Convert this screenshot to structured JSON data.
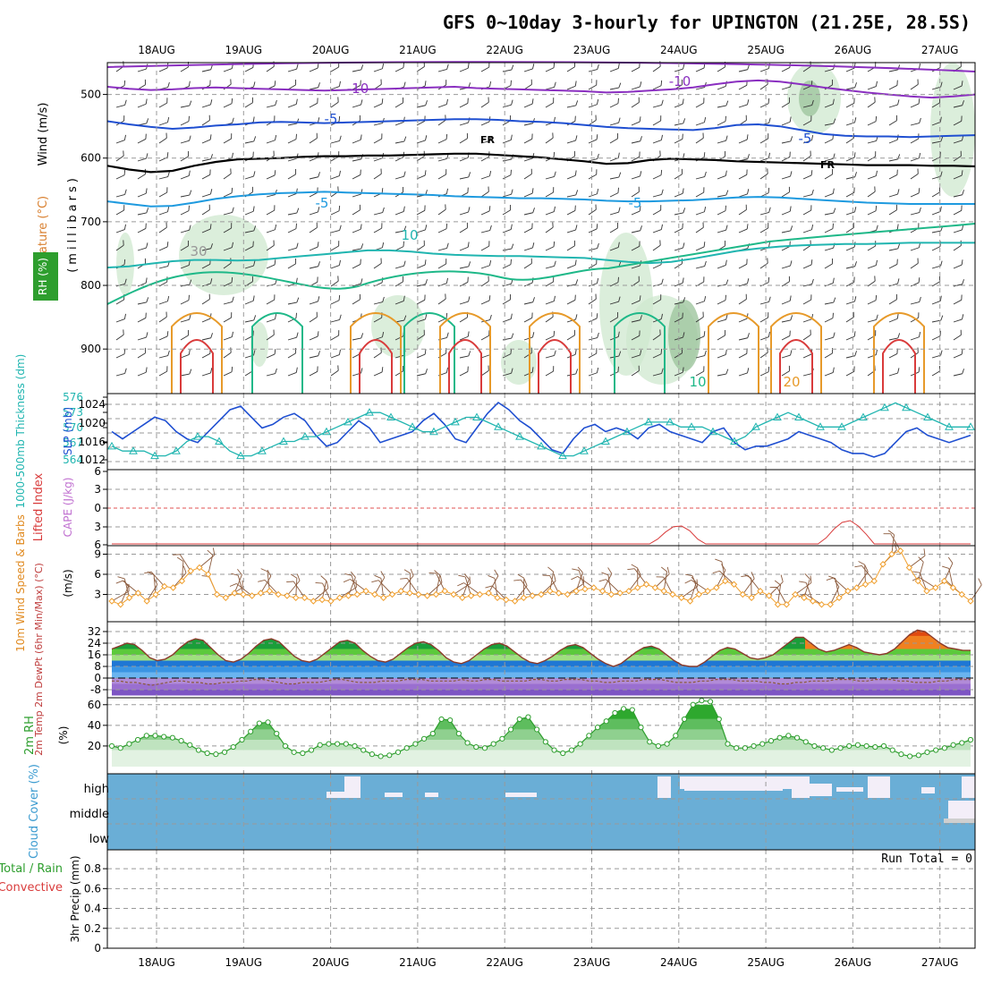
{
  "page": {
    "title": "GFS 0~10day 3-hourly for UPINGTON (21.25E, 28.5S)"
  },
  "dates": [
    "18AUG",
    "19AUG",
    "20AUG",
    "21AUG",
    "22AUG",
    "23AUG",
    "24AUG",
    "25AUG",
    "26AUG",
    "27AUG"
  ],
  "colors": {
    "purple": "#8a2fc0",
    "blue": "#1f4fd1",
    "lightblue": "#1e9adf",
    "cyan": "#20b5b0",
    "teal": "#1eb888",
    "orange": "#e79a2a",
    "red": "#d93b3b",
    "green": "#2e9e2e",
    "rhshade": "#cfe8cf",
    "cloud": "#6aaed6",
    "cloudclear": "#f3eef8",
    "windbrown": "#8b5a3c",
    "windorange": "#f0a030"
  },
  "panels": {
    "upper": {
      "ylabel_wind": "Wind (m/s)",
      "ylabel_temp": "Temperature (°C)",
      "ylabel_rh": "RH (%)",
      "ylabel_p": "(millibars)",
      "contour_labels": [
        "-10",
        "-10",
        "-5",
        "-5",
        "FR",
        "FR",
        "-5",
        "-5",
        "10",
        "10",
        "20",
        "10",
        "10",
        "30"
      ]
    },
    "slp": {
      "ylabel_thick": "1000-500mb Thickness (dm)",
      "ylabel_slp": "SLP (mb)"
    },
    "cape": {
      "ylabel_li": "Lifted Index",
      "ylabel_cape": "CAPE (J/kg)"
    },
    "wind10": {
      "ylabel": "10m Wind Speed & Barbs",
      "units": "(m/s)"
    },
    "temp2m": {
      "ylabel": "2m Temp 2m DewPt (6hr Min/Max) (°C)"
    },
    "rh2m": {
      "ylabel": "2m RH",
      "units": "(%)"
    },
    "cloud": {
      "ylabel": "Cloud Cover (%)",
      "levels": [
        "high",
        "middle",
        "low"
      ]
    },
    "precip": {
      "ylabel_a": "Total / Rain",
      "ylabel_b": "Convective",
      "ylabel_c": "3hr Precip (mm)",
      "run_total": "Run Total = 0"
    }
  },
  "chart_data": [
    {
      "type": "line",
      "title": "GFS 0~10day 3-hourly for UPINGTON (21.25E, 28.5S)",
      "panel": "upper-air cross section",
      "ylabel": "(millibars)",
      "ylim": [
        450,
        970
      ],
      "yticks": [
        500,
        600,
        700,
        800,
        900
      ],
      "series": [
        {
          "name": "-10",
          "values": [
            488,
            491,
            493,
            492,
            490,
            489,
            490,
            491,
            492,
            493,
            494,
            493,
            492,
            491,
            490,
            489,
            488,
            490,
            491,
            492,
            493,
            494,
            495,
            497,
            496,
            494,
            492,
            489,
            484,
            480,
            478,
            480,
            484,
            489,
            493,
            497,
            500,
            503,
            505,
            503,
            500
          ]
        },
        {
          "name": "-5",
          "values": [
            542,
            547,
            551,
            554,
            552,
            549,
            547,
            544,
            543,
            544,
            545,
            544,
            543,
            542,
            541,
            540,
            539,
            539,
            540,
            542,
            543,
            545,
            548,
            551,
            553,
            554,
            555,
            556,
            553,
            548,
            547,
            550,
            556,
            562,
            565,
            566,
            566,
            567,
            566,
            565,
            564
          ]
        },
        {
          "name": "FR",
          "values": [
            612,
            618,
            622,
            620,
            612,
            606,
            602,
            601,
            600,
            598,
            597,
            597,
            596,
            596,
            595,
            594,
            593,
            593,
            595,
            597,
            599,
            602,
            605,
            609,
            608,
            603,
            601,
            602,
            603,
            605,
            606,
            607,
            608,
            609,
            610,
            611,
            611,
            611,
            612,
            612,
            613
          ]
        },
        {
          "name": "-5",
          "values": [
            668,
            672,
            676,
            675,
            670,
            664,
            660,
            657,
            655,
            654,
            653,
            654,
            655,
            656,
            657,
            658,
            660,
            661,
            662,
            663,
            663,
            664,
            665,
            667,
            668,
            668,
            667,
            666,
            664,
            662,
            661,
            662,
            664,
            666,
            668,
            670,
            671,
            672,
            672,
            672,
            672
          ]
        },
        {
          "name": "10",
          "values": [
            772,
            770,
            766,
            762,
            760,
            760,
            761,
            760,
            757,
            754,
            751,
            748,
            745,
            745,
            747,
            750,
            752,
            753,
            754,
            754,
            755,
            756,
            757,
            760,
            763,
            765,
            763,
            758,
            752,
            746,
            742,
            739,
            737,
            736,
            735,
            735,
            734,
            733,
            733,
            733,
            733
          ]
        }
      ]
    },
    {
      "type": "line",
      "panel": "1000-500mb thickness and SLP",
      "ylabel_left": "1000-500mb Thickness (dm)",
      "ylabel_right": "SLP (mb)",
      "series": [
        {
          "name": "SLP (mb)",
          "values": [
            1018,
            1016,
            1018,
            1020,
            1022,
            1021,
            1018,
            1016,
            1015,
            1018,
            1021,
            1024,
            1025,
            1022,
            1019,
            1020,
            1022,
            1023,
            1021,
            1017,
            1014,
            1015,
            1018,
            1021,
            1019,
            1015,
            1016,
            1017,
            1018,
            1021,
            1023,
            1020,
            1016,
            1015,
            1019,
            1023,
            1026,
            1024,
            1021,
            1019,
            1016,
            1013,
            1012,
            1016,
            1019,
            1020,
            1018,
            1019,
            1018,
            1016,
            1019,
            1020,
            1018,
            1017,
            1016,
            1015,
            1018,
            1019,
            1015,
            1013,
            1014,
            1014,
            1015,
            1016,
            1018,
            1017,
            1016,
            1015,
            1013,
            1012,
            1012,
            1011,
            1012,
            1015,
            1018,
            1019,
            1017,
            1016,
            1015,
            1016,
            1017
          ]
        },
        {
          "name": "1000-500mb Thickness (dm)",
          "values": [
            566,
            565,
            565,
            565,
            564,
            564,
            565,
            567,
            568,
            568,
            567,
            565,
            564,
            564,
            565,
            566,
            567,
            567,
            568,
            568,
            569,
            570,
            571,
            572,
            573,
            573,
            572,
            571,
            570,
            569,
            569,
            570,
            571,
            572,
            572,
            571,
            570,
            569,
            568,
            567,
            566,
            565,
            564,
            564,
            565,
            566,
            567,
            568,
            569,
            570,
            571,
            571,
            571,
            570,
            570,
            570,
            569,
            568,
            567,
            568,
            570,
            571,
            572,
            573,
            572,
            571,
            570,
            570,
            570,
            571,
            572,
            573,
            574,
            575,
            574,
            573,
            572,
            571,
            570,
            570,
            570
          ]
        }
      ]
    },
    {
      "type": "line",
      "panel": "CAPE and Lifted Index",
      "ylabel": "Lifted Index / CAPE (J/kg)",
      "yticks": [
        "6",
        "3",
        "0",
        "3",
        "6"
      ],
      "series": [
        {
          "name": "Lifted Index",
          "values": [
            6,
            6,
            6,
            6,
            6,
            6,
            6,
            6,
            6,
            6,
            6,
            6,
            6,
            6,
            6,
            6,
            6,
            6,
            6,
            6,
            6,
            6,
            6,
            6,
            6,
            6,
            6,
            6,
            6,
            6,
            6,
            6,
            6,
            6,
            6,
            6,
            6,
            6,
            6,
            6,
            6,
            6,
            6,
            6,
            6,
            6,
            6,
            6,
            6,
            6,
            6,
            6,
            6,
            6,
            6,
            6,
            6,
            6,
            6,
            6,
            6,
            6,
            6,
            6,
            6,
            6,
            6,
            6,
            5.2,
            4.0,
            3.1,
            3.0,
            3.8,
            5.2,
            6,
            6,
            6,
            6,
            6,
            6,
            6,
            6,
            6,
            6,
            6,
            6,
            6,
            6,
            6,
            5.0,
            3.5,
            2.4,
            2.1,
            3.0,
            4.4,
            6,
            6,
            6,
            6,
            6,
            6,
            6,
            6,
            6,
            6,
            6,
            6,
            6
          ]
        }
      ]
    },
    {
      "type": "line",
      "panel": "10m wind",
      "ylabel": "10m Wind Speed & Barbs (m/s)",
      "yticks": [
        3,
        6,
        9
      ],
      "series": [
        {
          "name": "10m Wind Speed",
          "values": [
            2.0,
            1.5,
            2.5,
            3.2,
            2.0,
            3.0,
            4.2,
            4.0,
            5.0,
            6.5,
            7.0,
            6.0,
            3.0,
            2.5,
            3.2,
            3.0,
            2.8,
            3.2,
            3.5,
            3.0,
            2.8,
            2.5,
            2.5,
            2.0,
            2.2,
            2.0,
            2.5,
            2.8,
            3.0,
            3.5,
            3.0,
            2.5,
            3.0,
            3.5,
            3.2,
            3.0,
            2.8,
            3.0,
            3.5,
            3.0,
            2.5,
            2.8,
            3.0,
            3.2,
            2.5,
            2.2,
            2.0,
            2.5,
            2.8,
            3.0,
            3.5,
            3.2,
            3.0,
            3.5,
            3.8,
            4.0,
            3.5,
            3.0,
            3.2,
            3.5,
            4.0,
            4.5,
            4.0,
            3.5,
            3.0,
            2.5,
            2.0,
            3.0,
            3.5,
            4.0,
            5.0,
            4.5,
            3.0,
            2.5,
            3.5,
            2.8,
            1.5,
            1.5,
            3.0,
            2.5,
            2.0,
            1.5,
            1.5,
            2.5,
            3.5,
            4.0,
            4.5,
            5.0,
            7.5,
            9.0,
            9.5,
            7.0,
            5.0,
            3.5,
            4.0,
            5.0,
            4.0,
            3.0,
            2.0
          ]
        }
      ]
    },
    {
      "type": "area",
      "panel": "2m temperature and dewpoint",
      "ylabel": "2m Temp 2m DewPt (6hr Min/Max) (°C)",
      "yticks": [
        -8,
        0,
        8,
        16,
        24,
        32
      ],
      "series": [
        {
          "name": "2m Temp",
          "values": [
            20,
            22,
            24,
            23,
            19,
            14,
            12,
            13,
            16,
            21,
            25,
            27,
            26,
            21,
            16,
            12,
            11,
            13,
            17,
            22,
            26,
            27,
            25,
            20,
            15,
            12,
            11,
            13,
            17,
            21,
            25,
            26,
            24,
            19,
            15,
            12,
            11,
            13,
            17,
            21,
            24,
            25,
            23,
            19,
            14,
            11,
            10,
            12,
            16,
            20,
            23,
            24,
            22,
            18,
            14,
            11,
            10,
            12,
            15,
            19,
            22,
            23,
            21,
            17,
            13,
            10,
            8,
            10,
            14,
            18,
            21,
            22,
            20,
            16,
            12,
            9,
            8,
            8,
            11,
            15,
            19,
            21,
            20,
            17,
            14,
            13,
            14,
            16,
            20,
            24,
            28,
            28,
            24,
            20,
            18,
            19,
            21,
            23,
            21,
            18,
            17,
            16,
            17,
            20,
            25,
            30,
            33,
            32,
            28,
            24,
            21,
            20,
            19,
            19
          ]
        },
        {
          "name": "2m DewPt",
          "values": [
            -2,
            -2,
            -3,
            -3,
            -4,
            -5,
            -4,
            -3,
            -2,
            -2,
            -3,
            -3,
            -4,
            -4,
            -3,
            -3,
            -2,
            -2,
            -1,
            -1,
            -2,
            -3,
            -4,
            -4,
            -3,
            -3,
            -3,
            -2,
            -1,
            -1,
            -2,
            -3,
            -3,
            -3,
            -2,
            -2,
            -2,
            -1,
            -1,
            -1,
            -2,
            -2,
            -2,
            -2,
            -1,
            -2,
            -2,
            -1,
            -1,
            -2,
            -2,
            -2,
            -2,
            -1,
            -1,
            -2,
            -2,
            -1,
            -1,
            -1,
            -2,
            -2,
            -3,
            -3,
            -2,
            -2,
            -2,
            -1,
            -1,
            -1,
            -2,
            -3,
            -3,
            -3,
            -2,
            -2,
            -1,
            -1,
            -1,
            -2,
            -2,
            -2,
            -3,
            -3,
            -4,
            -4,
            -3,
            -3,
            -2,
            -2,
            -2,
            -1,
            -1,
            -1,
            -2,
            -2,
            -1,
            -1,
            -1,
            -2,
            -2,
            -3,
            -3,
            -3,
            -2,
            -2,
            -1,
            -1,
            -1
          ]
        }
      ]
    },
    {
      "type": "area",
      "panel": "2m relative humidity",
      "ylabel": "2m RH (%)",
      "yticks": [
        20,
        40,
        60
      ],
      "series": [
        {
          "name": "2m RH",
          "values": [
            20,
            18,
            22,
            26,
            30,
            30,
            29,
            28,
            25,
            21,
            16,
            13,
            12,
            14,
            19,
            26,
            34,
            42,
            43,
            32,
            20,
            14,
            13,
            16,
            21,
            22,
            22,
            22,
            20,
            16,
            12,
            10,
            11,
            14,
            18,
            22,
            27,
            32,
            46,
            45,
            32,
            23,
            19,
            18,
            22,
            27,
            36,
            46,
            48,
            36,
            24,
            16,
            13,
            16,
            22,
            30,
            38,
            44,
            52,
            56,
            55,
            38,
            24,
            20,
            22,
            30,
            46,
            60,
            64,
            63,
            46,
            22,
            18,
            18,
            20,
            22,
            25,
            28,
            30,
            28,
            24,
            20,
            18,
            16,
            18,
            20,
            21,
            20,
            19,
            20,
            16,
            12,
            10,
            11,
            14,
            16,
            18,
            21,
            23,
            26
          ]
        }
      ]
    },
    {
      "type": "heatmap",
      "panel": "Cloud cover",
      "ylabel": "Cloud Cover (%)",
      "levels": [
        "high",
        "middle",
        "low"
      ]
    },
    {
      "type": "bar",
      "panel": "3hr precipitation",
      "ylabel": "3hr Precip (mm)",
      "ylim": [
        0,
        1
      ],
      "yticks": [
        0,
        0.2,
        0.4,
        0.6,
        0.8
      ],
      "values": [],
      "annotation": "Run Total = 0"
    }
  ]
}
